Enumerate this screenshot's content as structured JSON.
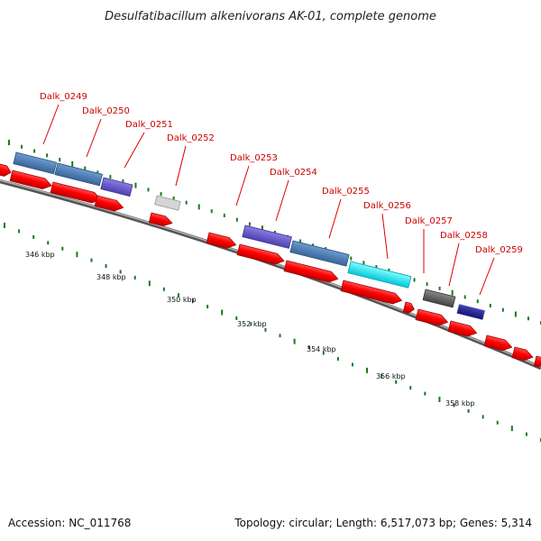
{
  "title": "Desulfatibacillum alkenivorans AK-01, complete genome",
  "footer": {
    "accession": "Accession: NC_011768",
    "info": "Topology: circular; Length: 6,517,073 bp; Genes: 5,314"
  },
  "kbp_labels": [
    "346 kbp",
    "348 kbp",
    "350 kbp",
    "352 kbp",
    "354 kbp",
    "356 kbp",
    "358 kbp"
  ],
  "gene_labels": [
    "Dalk_0249",
    "Dalk_0250",
    "Dalk_0251",
    "Dalk_0252",
    "Dalk_0253",
    "Dalk_0254",
    "Dalk_0255",
    "Dalk_0256",
    "Dalk_0257",
    "Dalk_0258",
    "Dalk_0259"
  ],
  "colors": {
    "cds": "#ff0000",
    "steelblue": "#4a7fb5",
    "slateblue": "#6a5acd",
    "lightgray": "#cfcfcf",
    "cyan": "#00e8f0",
    "darkgray": "#5f5f5f",
    "navy": "#1c1c8c",
    "tick": "#1a7a1a",
    "label": "#cc0000",
    "backbone": "#888888"
  }
}
